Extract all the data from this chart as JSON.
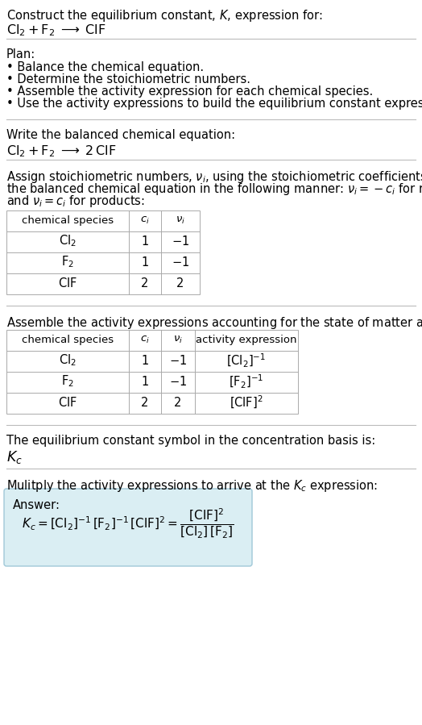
{
  "title_line1": "Construct the equilibrium constant, $K$, expression for:",
  "title_line2": "$\\mathrm{Cl_2 + F_2 \\;\\longrightarrow\\; ClF}$",
  "plan_header": "Plan:",
  "plan_items": [
    "• Balance the chemical equation.",
    "• Determine the stoichiometric numbers.",
    "• Assemble the activity expression for each chemical species.",
    "• Use the activity expressions to build the equilibrium constant expression."
  ],
  "balanced_header": "Write the balanced chemical equation:",
  "balanced_eq": "$\\mathrm{Cl_2 + F_2 \\;\\longrightarrow\\; 2\\,ClF}$",
  "stoich_intro_parts": [
    "Assign stoichiometric numbers, $\\nu_i$, using the stoichiometric coefficients, $c_i$, from",
    "the balanced chemical equation in the following manner: $\\nu_i = -c_i$ for reactants",
    "and $\\nu_i = c_i$ for products:"
  ],
  "table1_headers": [
    "chemical species",
    "$c_i$",
    "$\\nu_i$"
  ],
  "table1_rows": [
    [
      "$\\mathrm{Cl_2}$",
      "1",
      "$-1$"
    ],
    [
      "$\\mathrm{F_2}$",
      "1",
      "$-1$"
    ],
    [
      "$\\mathrm{ClF}$",
      "2",
      "2"
    ]
  ],
  "activity_intro": "Assemble the activity expressions accounting for the state of matter and $\\nu_i$:",
  "table2_headers": [
    "chemical species",
    "$c_i$",
    "$\\nu_i$",
    "activity expression"
  ],
  "table2_rows": [
    [
      "$\\mathrm{Cl_2}$",
      "1",
      "$-1$",
      "$[\\mathrm{Cl_2}]^{-1}$"
    ],
    [
      "$\\mathrm{F_2}$",
      "1",
      "$-1$",
      "$[\\mathrm{F_2}]^{-1}$"
    ],
    [
      "$\\mathrm{ClF}$",
      "2",
      "2",
      "$[\\mathrm{ClF}]^{2}$"
    ]
  ],
  "kc_symbol_text": "The equilibrium constant symbol in the concentration basis is:",
  "kc_symbol": "$K_c$",
  "multiply_text": "Mulitply the activity expressions to arrive at the $K_c$ expression:",
  "answer_label": "Answer:",
  "answer_eq_line": "$K_c = [\\mathrm{Cl_2}]^{-1}\\,[\\mathrm{F_2}]^{-1}\\,[\\mathrm{ClF}]^{2} = \\dfrac{[\\mathrm{ClF}]^{2}}{[\\mathrm{Cl_2}]\\,[\\mathrm{F_2}]}$",
  "bg_color": "#ffffff",
  "text_color": "#000000",
  "table_border_color": "#aaaaaa",
  "answer_box_facecolor": "#daeef3",
  "answer_box_edgecolor": "#a0c8d8",
  "separator_color": "#bbbbbb",
  "font_size": 10.5,
  "small_font_size": 9.5
}
